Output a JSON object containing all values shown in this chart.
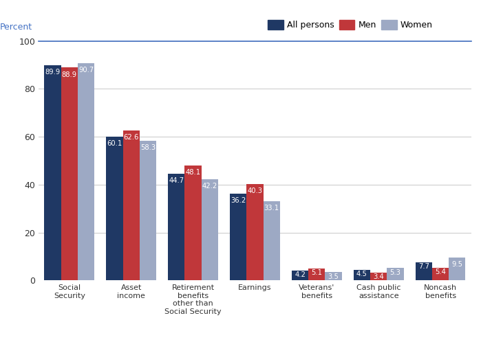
{
  "categories": [
    "Social\nSecurity",
    "Asset\nincome",
    "Retirement\nbenefits\nother than\nSocial Security",
    "Earnings",
    "Veterans'\nbenefits",
    "Cash public\nassistance",
    "Noncash\nbenefits"
  ],
  "all_persons": [
    89.9,
    60.1,
    44.7,
    36.2,
    4.2,
    4.5,
    7.7
  ],
  "men": [
    88.9,
    62.6,
    48.1,
    40.3,
    5.1,
    3.4,
    5.4
  ],
  "women": [
    90.7,
    58.3,
    42.2,
    33.1,
    3.5,
    5.3,
    9.5
  ],
  "color_all": "#1f3864",
  "color_men": "#c0373a",
  "color_women": "#9da9c4",
  "ylabel": "Percent",
  "ylim": [
    0,
    100
  ],
  "yticks": [
    0,
    20,
    40,
    60,
    80,
    100
  ],
  "legend_labels": [
    "All persons",
    "Men",
    "Women"
  ],
  "bar_width": 0.27,
  "label_fontsize": 7.2,
  "axis_color": "#4472c4",
  "grid_color": "#c8c8c8",
  "spine_color": "#4472c4"
}
